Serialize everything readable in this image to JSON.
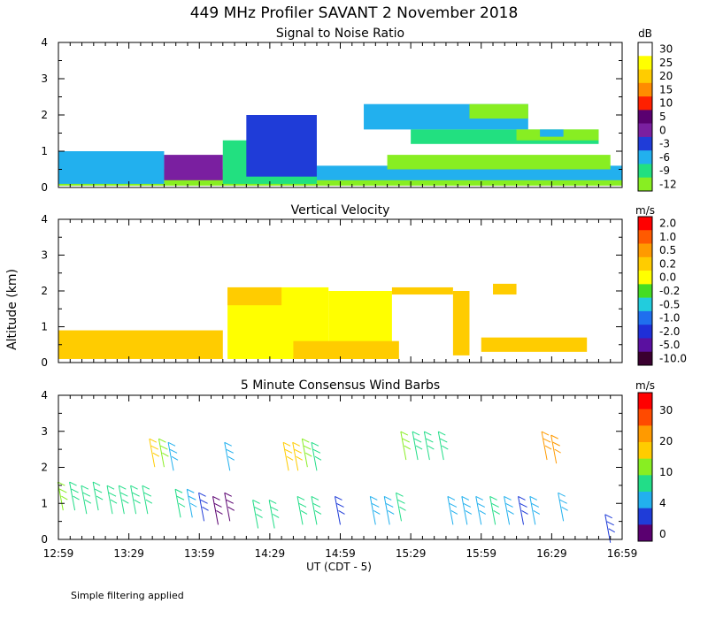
{
  "title": "449 MHz Profiler SAVANT  2 November 2018",
  "y_axis_label": "Altitude (km)",
  "x_axis_label": "UT  (CDT - 5)",
  "x_ticks": [
    "12:59",
    "13:29",
    "13:59",
    "14:29",
    "14:59",
    "15:29",
    "15:59",
    "16:29",
    "16:59"
  ],
  "y_ticks": [
    "0",
    "1",
    "2",
    "3",
    "4"
  ],
  "footnote": "Simple filtering applied",
  "chart_data": [
    {
      "type": "heatmap",
      "title": "Signal to Noise Ratio",
      "units": "dB",
      "ylim": [
        0,
        4
      ],
      "colorbar": {
        "labels": [
          "30",
          "25",
          "20",
          "15",
          "10",
          "5",
          "0",
          "-3",
          "-6",
          "-9",
          "-12"
        ],
        "colors": [
          "#ffffff",
          "#ffff00",
          "#ffcc00",
          "#ff8c00",
          "#ff2000",
          "#5a0070",
          "#7a1fa0",
          "#1f3cd8",
          "#22b0ee",
          "#22e080",
          "#88ee22"
        ]
      },
      "layers": [
        {
          "y0": 0.05,
          "y1": 0.5,
          "x0": 0,
          "x1": 240,
          "color": "#88ee22"
        },
        {
          "y0": 0.1,
          "y1": 1.0,
          "x0": 0,
          "x1": 45,
          "color": "#22b0ee"
        },
        {
          "y0": 0.2,
          "y1": 0.9,
          "x0": 45,
          "x1": 70,
          "color": "#7a1fa0"
        },
        {
          "y0": 0.1,
          "y1": 1.3,
          "x0": 70,
          "x1": 110,
          "color": "#22e080"
        },
        {
          "y0": 0.3,
          "y1": 2.0,
          "x0": 80,
          "x1": 110,
          "color": "#1f3cd8"
        },
        {
          "y0": 0.2,
          "y1": 0.6,
          "x0": 110,
          "x1": 240,
          "color": "#22b0ee"
        },
        {
          "y0": 1.6,
          "y1": 2.3,
          "x0": 130,
          "x1": 200,
          "color": "#22b0ee"
        },
        {
          "y0": 1.2,
          "y1": 1.6,
          "x0": 150,
          "x1": 230,
          "color": "#22e080"
        },
        {
          "y0": 0.5,
          "y1": 0.9,
          "x0": 140,
          "x1": 235,
          "color": "#88ee22"
        },
        {
          "y0": 1.9,
          "y1": 2.3,
          "x0": 175,
          "x1": 200,
          "color": "#88ee22"
        },
        {
          "y0": 1.3,
          "y1": 1.6,
          "x0": 195,
          "x1": 230,
          "color": "#88ee22"
        },
        {
          "y0": 1.4,
          "y1": 1.6,
          "x0": 205,
          "x1": 215,
          "color": "#22b0ee"
        }
      ]
    },
    {
      "type": "heatmap",
      "title": "Vertical Velocity",
      "units": "m/s",
      "ylim": [
        0,
        4
      ],
      "colorbar": {
        "labels": [
          "2.0",
          "1.0",
          "0.5",
          "0.2",
          "0.0",
          "-0.2",
          "-0.5",
          "-1.0",
          "-2.0",
          "-5.0",
          "-10.0"
        ],
        "colors": [
          "#ff0000",
          "#ff5a00",
          "#ff9a00",
          "#ffcc00",
          "#ffff00",
          "#44dd22",
          "#22ccdd",
          "#1f6fee",
          "#1f2fd8",
          "#5a10a0",
          "#3a0030"
        ]
      },
      "layers": [
        {
          "y0": 0.1,
          "y1": 0.9,
          "x0": 0,
          "x1": 70,
          "color": "#ffcc00"
        },
        {
          "y0": 0.1,
          "y1": 2.1,
          "x0": 72,
          "x1": 115,
          "color": "#ffff00"
        },
        {
          "y0": 1.6,
          "y1": 2.1,
          "x0": 72,
          "x1": 95,
          "color": "#ffcc00"
        },
        {
          "y0": 0.1,
          "y1": 2.0,
          "x0": 115,
          "x1": 142,
          "color": "#ffff00"
        },
        {
          "y0": 1.9,
          "y1": 2.1,
          "x0": 142,
          "x1": 168,
          "color": "#ffcc00"
        },
        {
          "y0": 0.2,
          "y1": 2.0,
          "x0": 168,
          "x1": 175,
          "color": "#ffcc00"
        },
        {
          "y0": 0.1,
          "y1": 0.6,
          "x0": 100,
          "x1": 145,
          "color": "#ffcc00"
        },
        {
          "y0": 0.3,
          "y1": 0.7,
          "x0": 180,
          "x1": 225,
          "color": "#ffcc00"
        },
        {
          "y0": 1.9,
          "y1": 2.2,
          "x0": 185,
          "x1": 195,
          "color": "#ffcc00"
        }
      ]
    },
    {
      "type": "scatter",
      "title": "5 Minute Consensus Wind Barbs",
      "units": "m/s",
      "ylim": [
        0,
        4
      ],
      "colorbar": {
        "labels": [
          "30",
          "20",
          "10",
          "4",
          "0"
        ],
        "colors": [
          "#ff0000",
          "#ff4a00",
          "#ff9a00",
          "#ffcc00",
          "#88ee22",
          "#22dd88",
          "#22b0ee",
          "#1f3cd8",
          "#5a0070"
        ]
      },
      "barbs": [
        {
          "x": 2,
          "y": 1.2,
          "c": "#88ee22"
        },
        {
          "x": 7,
          "y": 1.2,
          "c": "#22dd88"
        },
        {
          "x": 12,
          "y": 1.1,
          "c": "#22dd88"
        },
        {
          "x": 17,
          "y": 1.2,
          "c": "#22dd88"
        },
        {
          "x": 23,
          "y": 1.1,
          "c": "#22dd88"
        },
        {
          "x": 28,
          "y": 1.1,
          "c": "#22dd88"
        },
        {
          "x": 33,
          "y": 1.1,
          "c": "#22dd88"
        },
        {
          "x": 38,
          "y": 1.1,
          "c": "#22dd88"
        },
        {
          "x": 41,
          "y": 2.4,
          "c": "#ffcc00"
        },
        {
          "x": 45,
          "y": 2.4,
          "c": "#88ee22"
        },
        {
          "x": 49,
          "y": 2.3,
          "c": "#22b0ee"
        },
        {
          "x": 52,
          "y": 1.0,
          "c": "#22dd88"
        },
        {
          "x": 57,
          "y": 1.0,
          "c": "#22b0ee"
        },
        {
          "x": 62,
          "y": 0.9,
          "c": "#1f3cd8"
        },
        {
          "x": 68,
          "y": 0.8,
          "c": "#5a0070"
        },
        {
          "x": 73,
          "y": 0.9,
          "c": "#5a0070"
        },
        {
          "x": 73,
          "y": 2.3,
          "c": "#22b0ee"
        },
        {
          "x": 85,
          "y": 0.7,
          "c": "#22dd88"
        },
        {
          "x": 92,
          "y": 0.7,
          "c": "#22dd88"
        },
        {
          "x": 98,
          "y": 2.3,
          "c": "#ffcc00"
        },
        {
          "x": 102,
          "y": 2.3,
          "c": "#ffcc00"
        },
        {
          "x": 106,
          "y": 2.4,
          "c": "#88ee22"
        },
        {
          "x": 110,
          "y": 2.3,
          "c": "#22dd88"
        },
        {
          "x": 104,
          "y": 0.8,
          "c": "#22dd88"
        },
        {
          "x": 110,
          "y": 0.8,
          "c": "#22dd88"
        },
        {
          "x": 120,
          "y": 0.8,
          "c": "#1f3cd8"
        },
        {
          "x": 135,
          "y": 0.8,
          "c": "#22b0ee"
        },
        {
          "x": 141,
          "y": 0.8,
          "c": "#22b0ee"
        },
        {
          "x": 146,
          "y": 0.9,
          "c": "#22dd88"
        },
        {
          "x": 148,
          "y": 2.6,
          "c": "#88ee22"
        },
        {
          "x": 153,
          "y": 2.6,
          "c": "#22dd88"
        },
        {
          "x": 158,
          "y": 2.6,
          "c": "#22dd88"
        },
        {
          "x": 164,
          "y": 2.6,
          "c": "#22dd88"
        },
        {
          "x": 168,
          "y": 0.8,
          "c": "#22b0ee"
        },
        {
          "x": 174,
          "y": 0.8,
          "c": "#22b0ee"
        },
        {
          "x": 180,
          "y": 0.8,
          "c": "#22b0ee"
        },
        {
          "x": 186,
          "y": 0.8,
          "c": "#22dd88"
        },
        {
          "x": 192,
          "y": 0.8,
          "c": "#22b0ee"
        },
        {
          "x": 198,
          "y": 0.8,
          "c": "#1f3cd8"
        },
        {
          "x": 203,
          "y": 0.8,
          "c": "#22b0ee"
        },
        {
          "x": 208,
          "y": 2.6,
          "c": "#ff9a00"
        },
        {
          "x": 212,
          "y": 2.5,
          "c": "#ff9a00"
        },
        {
          "x": 215,
          "y": 0.9,
          "c": "#22b0ee"
        },
        {
          "x": 235,
          "y": 0.3,
          "c": "#1f3cd8"
        }
      ]
    }
  ]
}
